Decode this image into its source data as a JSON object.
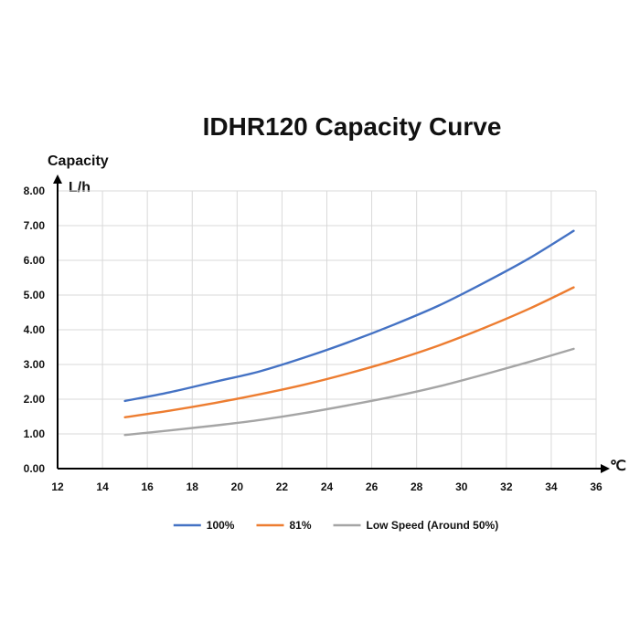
{
  "chart_data": {
    "type": "line",
    "title": "IDHR120  Capacity Curve",
    "ylabel": "Capacity",
    "yunit": "L/h",
    "xunit": "℃",
    "xlim": [
      12,
      36
    ],
    "ylim": [
      0,
      8
    ],
    "xticks": [
      "12",
      "14",
      "16",
      "18",
      "20",
      "22",
      "24",
      "26",
      "28",
      "30",
      "32",
      "34",
      "36"
    ],
    "yticks": [
      "0.00",
      "1.00",
      "2.00",
      "3.00",
      "4.00",
      "5.00",
      "6.00",
      "7.00",
      "8.00"
    ],
    "grid": true,
    "legend_position": "bottom",
    "x": [
      15,
      17,
      19,
      21,
      23,
      25,
      27,
      29,
      31,
      33,
      35
    ],
    "series": [
      {
        "name": "100%",
        "color": "#4472c4",
        "values": [
          1.95,
          2.2,
          2.5,
          2.8,
          3.2,
          3.65,
          4.15,
          4.7,
          5.35,
          6.05,
          6.85
        ]
      },
      {
        "name": "81%",
        "color": "#ed7d31",
        "values": [
          1.48,
          1.67,
          1.89,
          2.14,
          2.42,
          2.75,
          3.12,
          3.55,
          4.05,
          4.6,
          5.22
        ]
      },
      {
        "name": "Low Speed (Around 50%)",
        "color": "#a5a5a5",
        "values": [
          0.97,
          1.1,
          1.24,
          1.4,
          1.6,
          1.83,
          2.08,
          2.37,
          2.71,
          3.07,
          3.45
        ]
      }
    ]
  }
}
